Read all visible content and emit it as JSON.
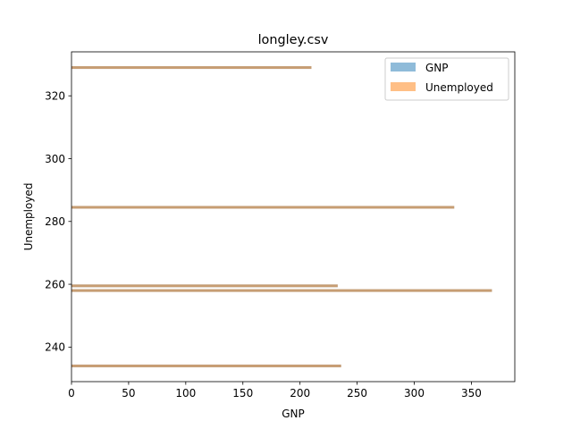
{
  "chart_data": {
    "type": "bar",
    "orientation": "horizontal",
    "title": "longley.csv",
    "xlabel": "GNP",
    "ylabel": "Unemployed",
    "xlim": [
      0,
      388
    ],
    "ylim": [
      229,
      334
    ],
    "xticks": [
      0,
      50,
      100,
      150,
      200,
      250,
      300,
      350
    ],
    "yticks": [
      240,
      260,
      280,
      300,
      320
    ],
    "legend_position": "top-right",
    "series": [
      {
        "name": "GNP",
        "color": "#1f77b4",
        "alpha": 0.5,
        "bars": [
          {
            "y": 329,
            "value": 210
          },
          {
            "y": 284.5,
            "value": 335
          },
          {
            "y": 259.5,
            "value": 233
          },
          {
            "y": 258,
            "value": 368
          },
          {
            "y": 234,
            "value": 236
          }
        ]
      },
      {
        "name": "Unemployed",
        "color": "#ff7f0e",
        "alpha": 0.5,
        "bars": [
          {
            "y": 329,
            "value": 210
          },
          {
            "y": 284.5,
            "value": 335
          },
          {
            "y": 259.5,
            "value": 233
          },
          {
            "y": 258,
            "value": 368
          },
          {
            "y": 234,
            "value": 236
          }
        ]
      }
    ]
  }
}
